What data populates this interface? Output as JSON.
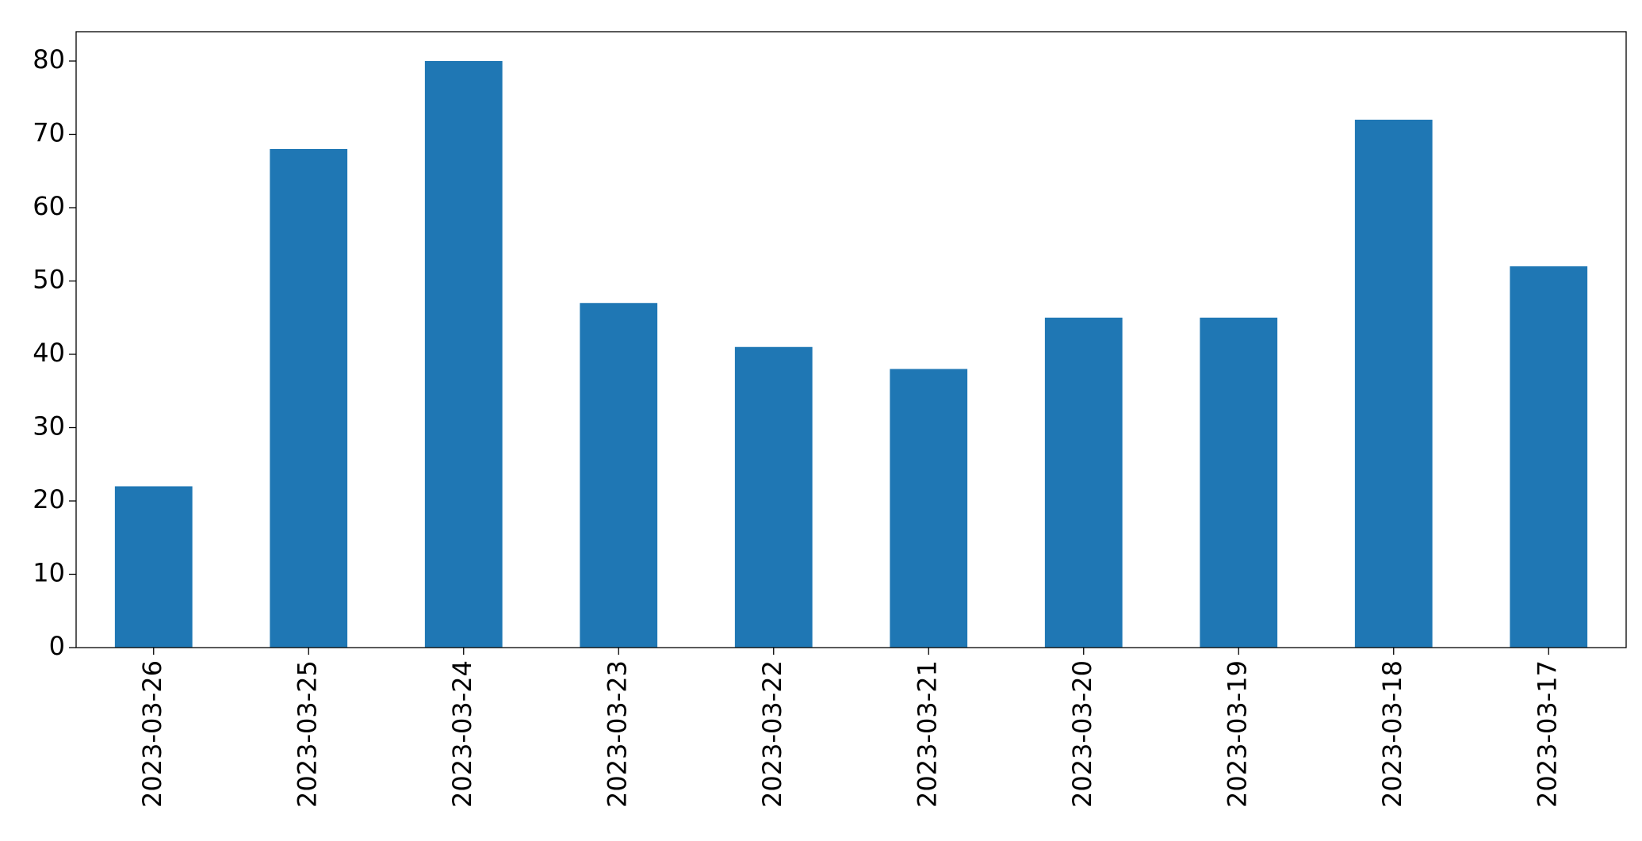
{
  "chart_data": {
    "type": "bar",
    "categories": [
      "2023-03-26",
      "2023-03-25",
      "2023-03-24",
      "2023-03-23",
      "2023-03-22",
      "2023-03-21",
      "2023-03-20",
      "2023-03-19",
      "2023-03-18",
      "2023-03-17"
    ],
    "values": [
      22,
      68,
      80,
      47,
      41,
      38,
      45,
      45,
      72,
      52
    ],
    "color": "#1f77b4",
    "ylim": [
      0,
      84
    ],
    "yticks": [
      0,
      10,
      20,
      30,
      40,
      50,
      60,
      70,
      80
    ],
    "grid": false
  }
}
